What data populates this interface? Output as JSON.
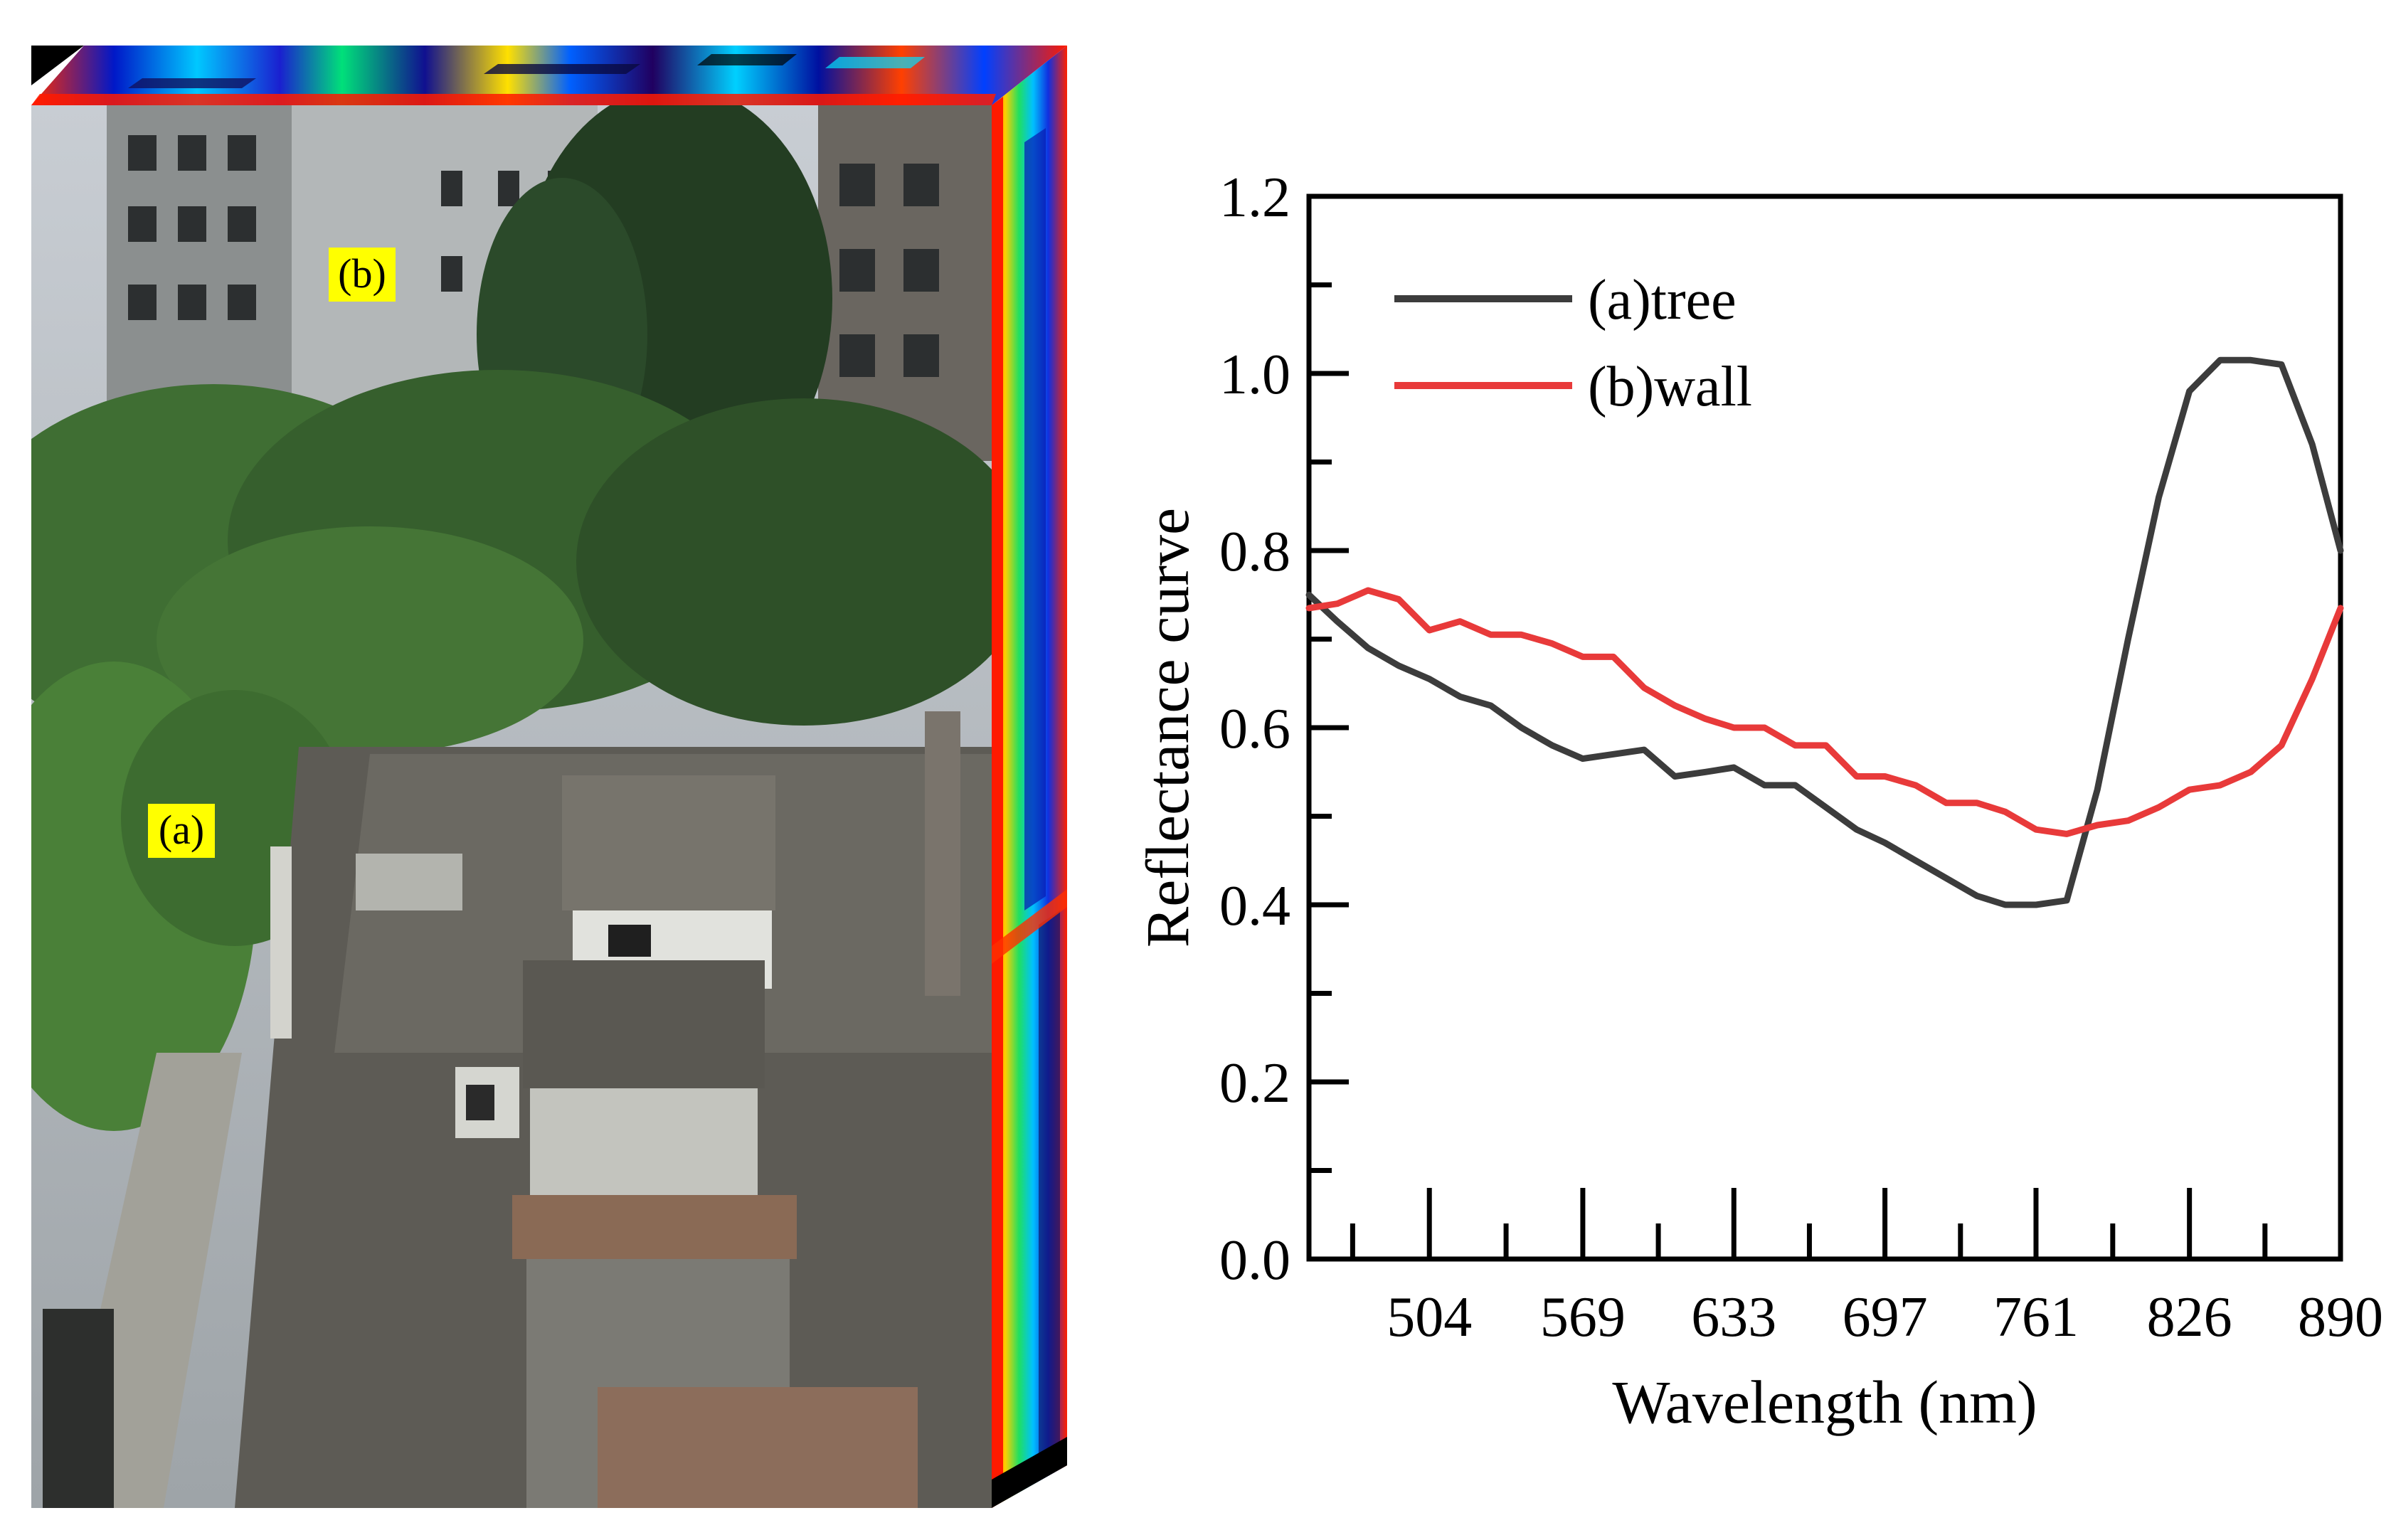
{
  "image_panel": {
    "region_labels": [
      {
        "id": "b",
        "text": "(b)"
      },
      {
        "id": "a",
        "text": "(a)"
      }
    ],
    "tag_color": "#ffff00"
  },
  "chart_data": {
    "type": "line",
    "title": "",
    "xlabel": "Wavelength (nm)",
    "ylabel": "Reflectance curve",
    "xlim": [
      453,
      890
    ],
    "ylim": [
      0.0,
      1.2
    ],
    "x_ticks": [
      504,
      569,
      633,
      697,
      761,
      826,
      890
    ],
    "y_ticks": [
      0.0,
      0.2,
      0.4,
      0.6,
      0.8,
      1.0,
      1.2
    ],
    "y_tick_labels": [
      "0.0",
      "0.2",
      "0.4",
      "0.6",
      "0.8",
      "1.0",
      "1.2"
    ],
    "legend_position": "top-left",
    "grid": false,
    "series": [
      {
        "name": "(a)tree",
        "color": "#3c3c3c",
        "points": [
          [
            453,
            0.75
          ],
          [
            465,
            0.72
          ],
          [
            478,
            0.69
          ],
          [
            491,
            0.67
          ],
          [
            504,
            0.655
          ],
          [
            517,
            0.635
          ],
          [
            530,
            0.625
          ],
          [
            543,
            0.6
          ],
          [
            556,
            0.58
          ],
          [
            569,
            0.565
          ],
          [
            582,
            0.57
          ],
          [
            595,
            0.575
          ],
          [
            608,
            0.545
          ],
          [
            621,
            0.55
          ],
          [
            633,
            0.555
          ],
          [
            646,
            0.535
          ],
          [
            659,
            0.535
          ],
          [
            672,
            0.51
          ],
          [
            685,
            0.485
          ],
          [
            697,
            0.47
          ],
          [
            710,
            0.45
          ],
          [
            723,
            0.43
          ],
          [
            736,
            0.41
          ],
          [
            748,
            0.4
          ],
          [
            761,
            0.4
          ],
          [
            774,
            0.405
          ],
          [
            787,
            0.53
          ],
          [
            800,
            0.7
          ],
          [
            813,
            0.86
          ],
          [
            826,
            0.98
          ],
          [
            839,
            1.015
          ],
          [
            852,
            1.015
          ],
          [
            865,
            1.01
          ],
          [
            878,
            0.92
          ],
          [
            890,
            0.8
          ]
        ]
      },
      {
        "name": "(b)wall",
        "color": "#e83a3a",
        "points": [
          [
            453,
            0.735
          ],
          [
            465,
            0.74
          ],
          [
            478,
            0.755
          ],
          [
            491,
            0.745
          ],
          [
            504,
            0.71
          ],
          [
            517,
            0.72
          ],
          [
            530,
            0.705
          ],
          [
            543,
            0.705
          ],
          [
            556,
            0.695
          ],
          [
            569,
            0.68
          ],
          [
            582,
            0.68
          ],
          [
            595,
            0.645
          ],
          [
            608,
            0.625
          ],
          [
            621,
            0.61
          ],
          [
            633,
            0.6
          ],
          [
            646,
            0.6
          ],
          [
            659,
            0.58
          ],
          [
            672,
            0.58
          ],
          [
            685,
            0.545
          ],
          [
            697,
            0.545
          ],
          [
            710,
            0.535
          ],
          [
            723,
            0.515
          ],
          [
            736,
            0.515
          ],
          [
            748,
            0.505
          ],
          [
            761,
            0.485
          ],
          [
            774,
            0.48
          ],
          [
            787,
            0.49
          ],
          [
            800,
            0.495
          ],
          [
            813,
            0.51
          ],
          [
            826,
            0.53
          ],
          [
            839,
            0.535
          ],
          [
            852,
            0.55
          ],
          [
            865,
            0.58
          ],
          [
            878,
            0.655
          ],
          [
            890,
            0.735
          ]
        ]
      }
    ]
  }
}
